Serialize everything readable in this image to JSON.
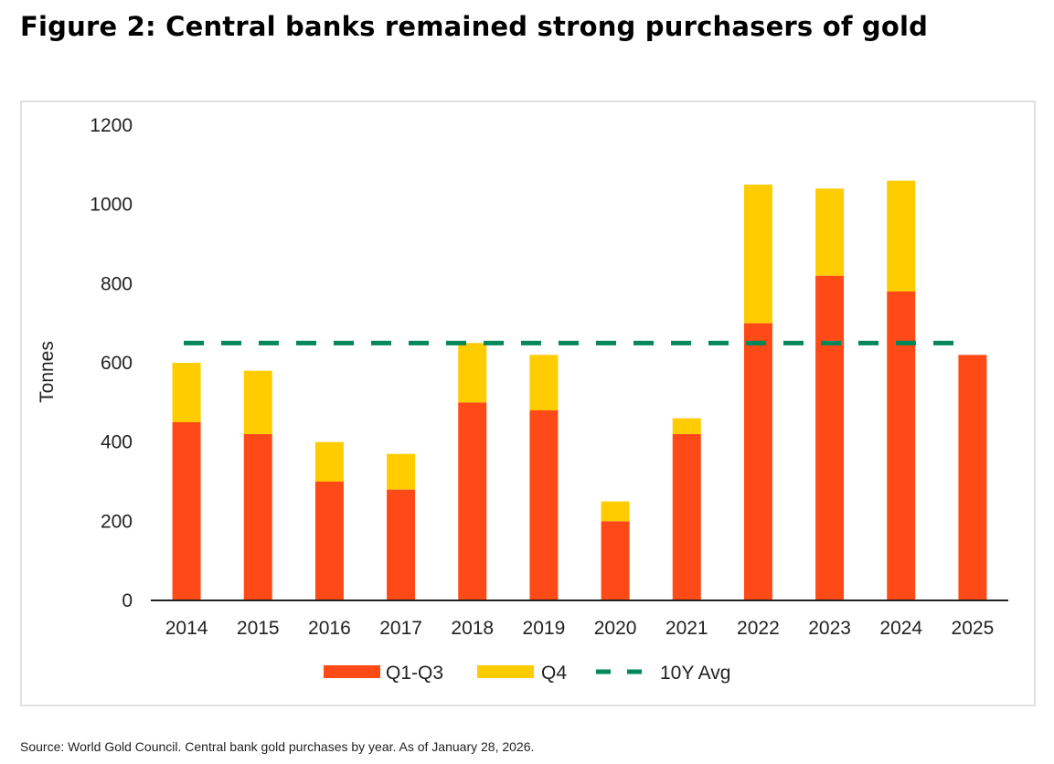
{
  "title": "Figure 2: Central banks remained strong purchasers of gold",
  "source": "Source: World Gold Council. Central bank gold purchases by year. As of January 28, 2026.",
  "chart_data": {
    "type": "bar",
    "stacked": true,
    "title": "Figure 2: Central banks remained strong purchasers of gold",
    "xlabel": "",
    "ylabel": "Tonnes",
    "ylim": [
      0,
      1200
    ],
    "yticks": [
      "0",
      "200",
      "400",
      "600",
      "800",
      "1000",
      "1200"
    ],
    "categories": [
      "2014",
      "2015",
      "2016",
      "2017",
      "2018",
      "2019",
      "2020",
      "2021",
      "2022",
      "2023",
      "2024",
      "2025"
    ],
    "series": [
      {
        "name": "Q1-Q3",
        "color": "#FF4A17",
        "values": [
          450,
          420,
          300,
          280,
          500,
          480,
          200,
          420,
          700,
          820,
          780,
          620
        ]
      },
      {
        "name": "Q4",
        "color": "#FFCC00",
        "values": [
          150,
          160,
          100,
          90,
          150,
          140,
          50,
          40,
          350,
          220,
          280,
          0
        ]
      }
    ],
    "reference_line": {
      "name": "10Y Avg",
      "value": 650,
      "color": "#00875A",
      "style": "dashed"
    },
    "grid": false,
    "legend_position": "bottom"
  }
}
